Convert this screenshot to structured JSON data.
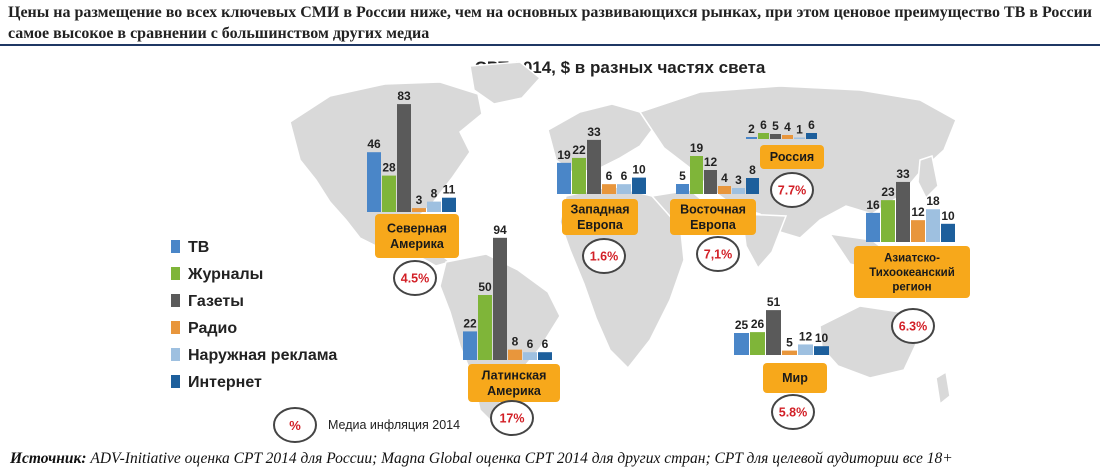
{
  "headline": "Цены на размещение во всех ключевых СМИ в России ниже, чем на основных развивающихся рынках, при этом ценовое преимущество ТВ в России самое высокое в сравнении с большинством других медиа",
  "source": {
    "label": "Источник:",
    "text": " ADV-Initiative оценка CPT 2014  для России; Magna  Global  оценка CPT 2014 для других стран; CPT  для целевой аудитории все  18+"
  },
  "colors": {
    "tv": "#4a86c8",
    "magazines": "#7fb539",
    "newspapers": "#5a5a5a",
    "radio": "#e8963c",
    "outdoor": "#9ec0e0",
    "internet": "#1d5f9c",
    "label_box": "#f7a81b",
    "inflation": "#d21f26",
    "map": "#d9d9d9"
  },
  "chart_data": {
    "type": "bar",
    "title": "CPT 2014, $ в разных частях света",
    "series_names": [
      "ТВ",
      "Журналы",
      "Газеты",
      "Радио",
      "Наружная реклама",
      "Интернет"
    ],
    "groups": [
      {
        "region": "Северная Америка",
        "values": [
          46,
          28,
          83,
          3,
          8,
          11
        ],
        "inflation": "4.5%"
      },
      {
        "region": "Латинская Америка",
        "values": [
          22,
          50,
          94,
          8,
          6,
          6
        ],
        "inflation": "17%"
      },
      {
        "region": "Западная Европа",
        "values": [
          19,
          22,
          33,
          6,
          6,
          10
        ],
        "inflation": "1.6%"
      },
      {
        "region": "Восточная Европа",
        "values": [
          5,
          19,
          12,
          4,
          3,
          8
        ],
        "inflation": "7,1%"
      },
      {
        "region": "Россия",
        "values": [
          2,
          6,
          5,
          4,
          1,
          6
        ],
        "inflation": "7.7%"
      },
      {
        "region": "Азиатско-Тихоокеанский регион",
        "values": [
          16,
          23,
          33,
          12,
          18,
          10
        ],
        "inflation": "6.3%"
      },
      {
        "region": "Мир",
        "values": [
          25,
          26,
          51,
          5,
          12,
          10
        ],
        "inflation": "5.8%"
      }
    ],
    "legend_position": "left",
    "inflation_legend": {
      "symbol": "%",
      "label": "Медиа инфляция 2014"
    }
  }
}
